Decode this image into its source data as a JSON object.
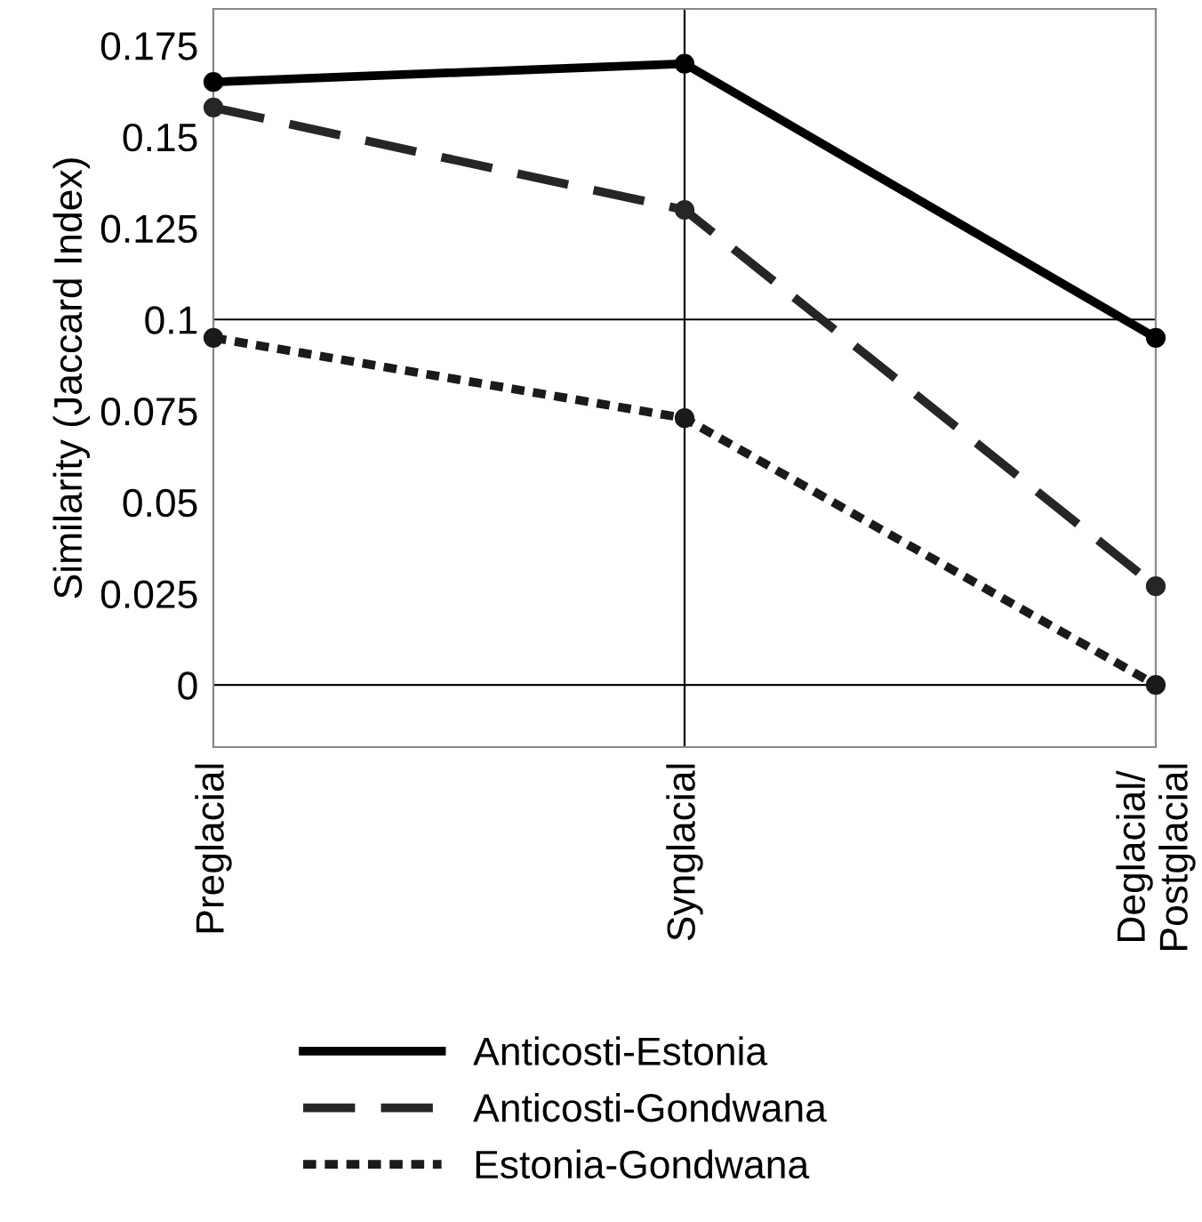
{
  "chart_data": {
    "type": "line",
    "ylabel": "Similarity (Jaccard Index)",
    "categories": [
      "Preglacial",
      "Synglacial",
      "Deglacial/\nPostglacial"
    ],
    "series": [
      {
        "name": "Anticosti-Estonia",
        "color": "#000000",
        "line_style": "solid",
        "values": [
          0.165,
          0.17,
          0.095
        ]
      },
      {
        "name": "Anticosti-Gondwana",
        "color": "#262626",
        "line_style": "dashed",
        "values": [
          0.158,
          0.13,
          0.027
        ]
      },
      {
        "name": "Estonia-Gondwana",
        "color": "#1a1a1a",
        "line_style": "dotted",
        "values": [
          0.095,
          0.073,
          0.0
        ]
      }
    ],
    "ylim": [
      -0.017,
      0.185
    ],
    "yticks": [
      0,
      0.025,
      0.05,
      0.075,
      0.1,
      0.125,
      0.15,
      0.175
    ],
    "ref_lines": [
      {
        "axis": "y",
        "value": 0,
        "color": "#000000"
      },
      {
        "axis": "y",
        "value": 0.1,
        "color": "#000000"
      },
      {
        "axis": "x",
        "value": "Synglacial",
        "color": "#000000"
      }
    ],
    "marker": "circle",
    "grid": false,
    "legend": "bottom"
  }
}
